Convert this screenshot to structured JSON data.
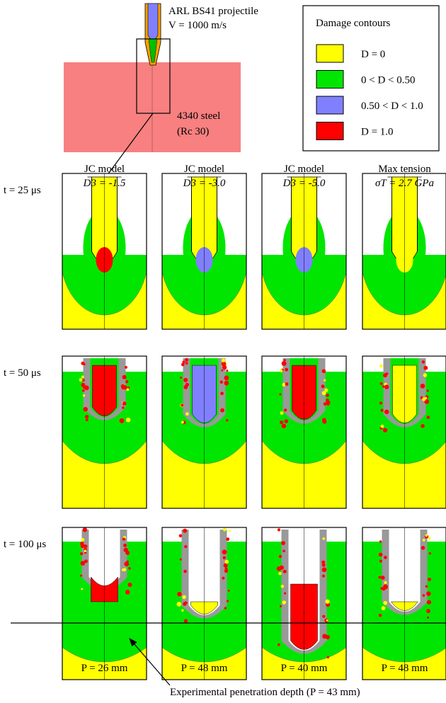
{
  "projectile": {
    "label": "ARL BS41 projectile",
    "velocity": "V = 1000 m/s"
  },
  "target": {
    "label": "4340 steel",
    "hardness": "(Rc 30)"
  },
  "legend": {
    "title": "Damage contours",
    "items": [
      {
        "label": "D = 0",
        "color": "#ffff00"
      },
      {
        "label": "0 < D < 0.50",
        "color": "#00e600"
      },
      {
        "label": "0.50 < D < 1.0",
        "color": "#8080ff"
      },
      {
        "label": "D = 1.0",
        "color": "#ff0000"
      }
    ]
  },
  "columns": [
    {
      "model": "JC model",
      "parameter": "D3 = -1.5"
    },
    {
      "model": "JC model",
      "parameter": "D3 = -3.0"
    },
    {
      "model": "JC model",
      "parameter": "D3 = -5.0"
    },
    {
      "model": "Max tension",
      "parameter": "σT = 2.7 GPa"
    }
  ],
  "rows": [
    "t = 25 μs",
    "t = 50 μs",
    "t = 100 μs"
  ],
  "penetration": [
    "P = 26 mm",
    "P = 48 mm",
    "P = 40 mm",
    "P = 48 mm"
  ],
  "caption": "Experimental penetration depth (P = 43 mm)"
}
